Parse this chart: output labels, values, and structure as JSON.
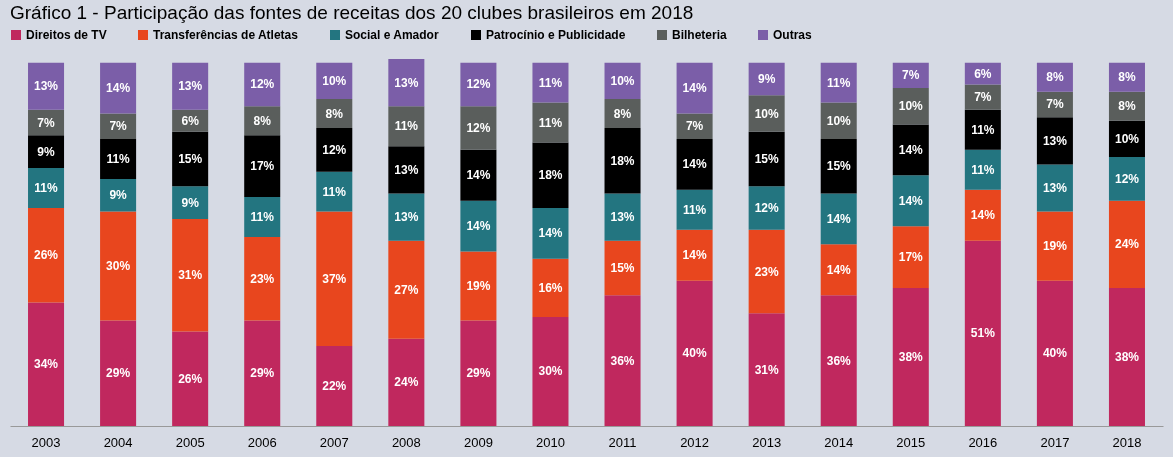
{
  "chart_data": {
    "type": "bar",
    "title": "Gráfico 1 - Participação das fontes de receitas dos 20 clubes brasileiros em 2018",
    "categories": [
      "2003",
      "2004",
      "2005",
      "2006",
      "2007",
      "2008",
      "2009",
      "2010",
      "2011",
      "2012",
      "2013",
      "2014",
      "2015",
      "2016",
      "2017",
      "2018"
    ],
    "stacked": true,
    "legend": "top",
    "grid": false,
    "series": [
      {
        "name": "Direitos de TV",
        "color": "#c0285e",
        "values": [
          34,
          29,
          26,
          29,
          22,
          24,
          29,
          30,
          36,
          40,
          31,
          36,
          38,
          51,
          40,
          38
        ],
        "value_labels": [
          "34%",
          "29%",
          "26%",
          "29%",
          "22%",
          "24%",
          "29%",
          "30%",
          "36%",
          "40%",
          "31%",
          "36%",
          "38%",
          "51%",
          "40%",
          "38%"
        ]
      },
      {
        "name": "Transferências de Atletas",
        "color": "#e8461e",
        "values": [
          26,
          30,
          31,
          23,
          37,
          27,
          19,
          16,
          15,
          14,
          23,
          14,
          17,
          14,
          19,
          24
        ],
        "value_labels": [
          "26%",
          "30%",
          "31%",
          "23%",
          "37%",
          "27%",
          "19%",
          "16%",
          "15%",
          "14%",
          "23%",
          "14%",
          "17%",
          "14%",
          "19%",
          "24%"
        ]
      },
      {
        "name": "Social e Amador",
        "color": "#237580",
        "values": [
          11,
          9,
          9,
          11,
          11,
          13,
          14,
          14,
          13,
          11,
          12,
          14,
          14,
          11,
          13,
          12
        ],
        "value_labels": [
          "11%",
          "9%",
          "9%",
          "11%",
          "11%",
          "13%",
          "14%",
          "14%",
          "13%",
          "11%",
          "12%",
          "14%",
          "14%",
          "11%",
          "13%",
          "12%"
        ]
      },
      {
        "name": "Patrocínio e Publicidade",
        "color": "#000000",
        "values": [
          9,
          11,
          15,
          17,
          12,
          13,
          14,
          18,
          18,
          14,
          15,
          15,
          14,
          11,
          13,
          10
        ],
        "value_labels": [
          "9%",
          "11%",
          "15%",
          "17%",
          "12%",
          "13%",
          "14%",
          "18%",
          "18%",
          "14%",
          "15%",
          "15%",
          "14%",
          "11%",
          "13%",
          "10%"
        ]
      },
      {
        "name": "Bilheteria",
        "color": "#5a5e5c",
        "values": [
          7,
          7,
          6,
          8,
          8,
          11,
          12,
          11,
          8,
          7,
          10,
          10,
          10,
          7,
          7,
          8
        ],
        "value_labels": [
          "7%",
          "7%",
          "6%",
          "8%",
          "8%",
          "11%",
          "12%",
          "11%",
          "8%",
          "7%",
          "10%",
          "10%",
          "10%",
          "7%",
          "7%",
          "8%"
        ]
      },
      {
        "name": "Outras",
        "color": "#7b5ea8",
        "values": [
          13,
          14,
          13,
          12,
          10,
          13,
          12,
          11,
          10,
          14,
          9,
          11,
          7,
          6,
          8,
          8
        ],
        "value_labels": [
          "13%",
          "14%",
          "13%",
          "12%",
          "10%",
          "13%",
          "12%",
          "11%",
          "10%",
          "14%",
          "9%",
          "11%",
          "7%",
          "6%",
          "8%",
          "8%"
        ]
      }
    ]
  }
}
